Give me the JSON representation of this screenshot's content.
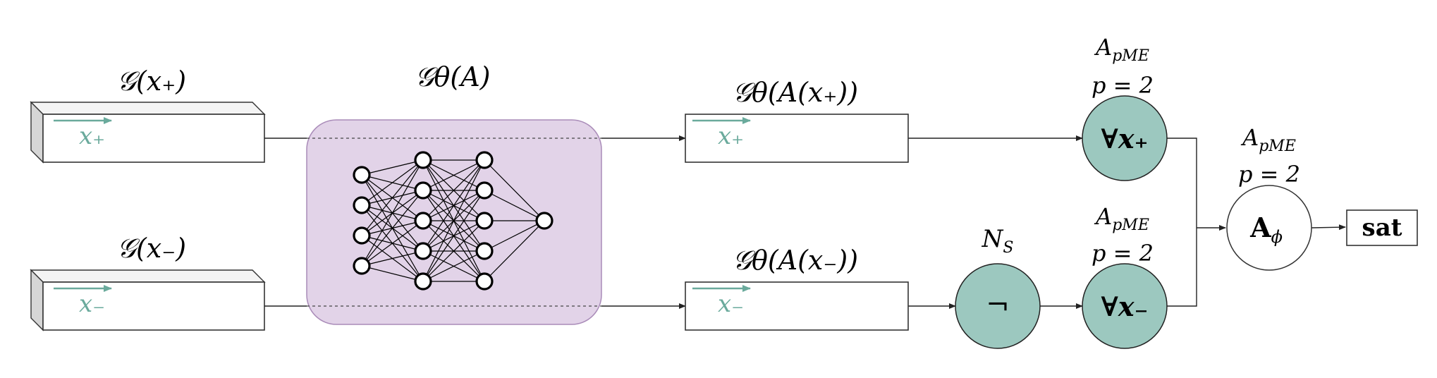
{
  "colors": {
    "teal_fill": "#9cc8bf",
    "teal_arrow": "#6aaa9c",
    "purple_fill": "#e2d3e8",
    "purple_stroke": "#a98bb8"
  },
  "inputs": {
    "pos_label": "𝒢(x₊)",
    "pos_inner": "x₊",
    "neg_label": "𝒢(x₋)",
    "neg_inner": "x₋"
  },
  "network": {
    "label": "𝒢θ(A)"
  },
  "outputs": {
    "pos_label": "𝒢θ(A(x₊))",
    "pos_inner": "x₊",
    "neg_label": "𝒢θ(A(x₋))",
    "neg_inner": "x₋"
  },
  "negation": {
    "label": "N",
    "label_sub": "S",
    "symbol": "¬"
  },
  "forall_pos": {
    "label_line1": "A",
    "label_line1_sub": "pME",
    "label_line2": "p = 2",
    "symbol": "∀x₊"
  },
  "forall_neg": {
    "label_line1": "A",
    "label_line1_sub": "pME",
    "label_line2": "p = 2",
    "symbol": "∀x₋"
  },
  "aggregator": {
    "label_line1": "A",
    "label_line1_sub": "pME",
    "label_line2": "p = 2",
    "symbol": "A",
    "symbol_sub": "ϕ"
  },
  "result": {
    "label": "sat"
  }
}
